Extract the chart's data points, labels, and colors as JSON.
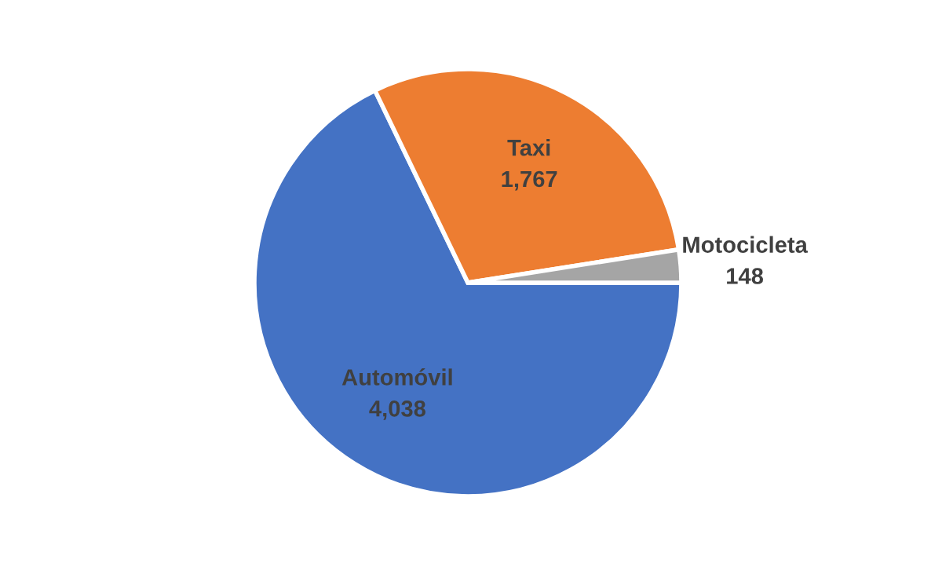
{
  "chart_data": {
    "type": "pie",
    "categories": [
      "Automóvil",
      "Taxi",
      "Motocicleta"
    ],
    "values": [
      4038,
      1767,
      148
    ],
    "colors": [
      "#4472c4",
      "#ed7d31",
      "#a5a5a5"
    ],
    "value_labels": [
      "4,038",
      "1,767",
      "148"
    ],
    "legend": false
  }
}
